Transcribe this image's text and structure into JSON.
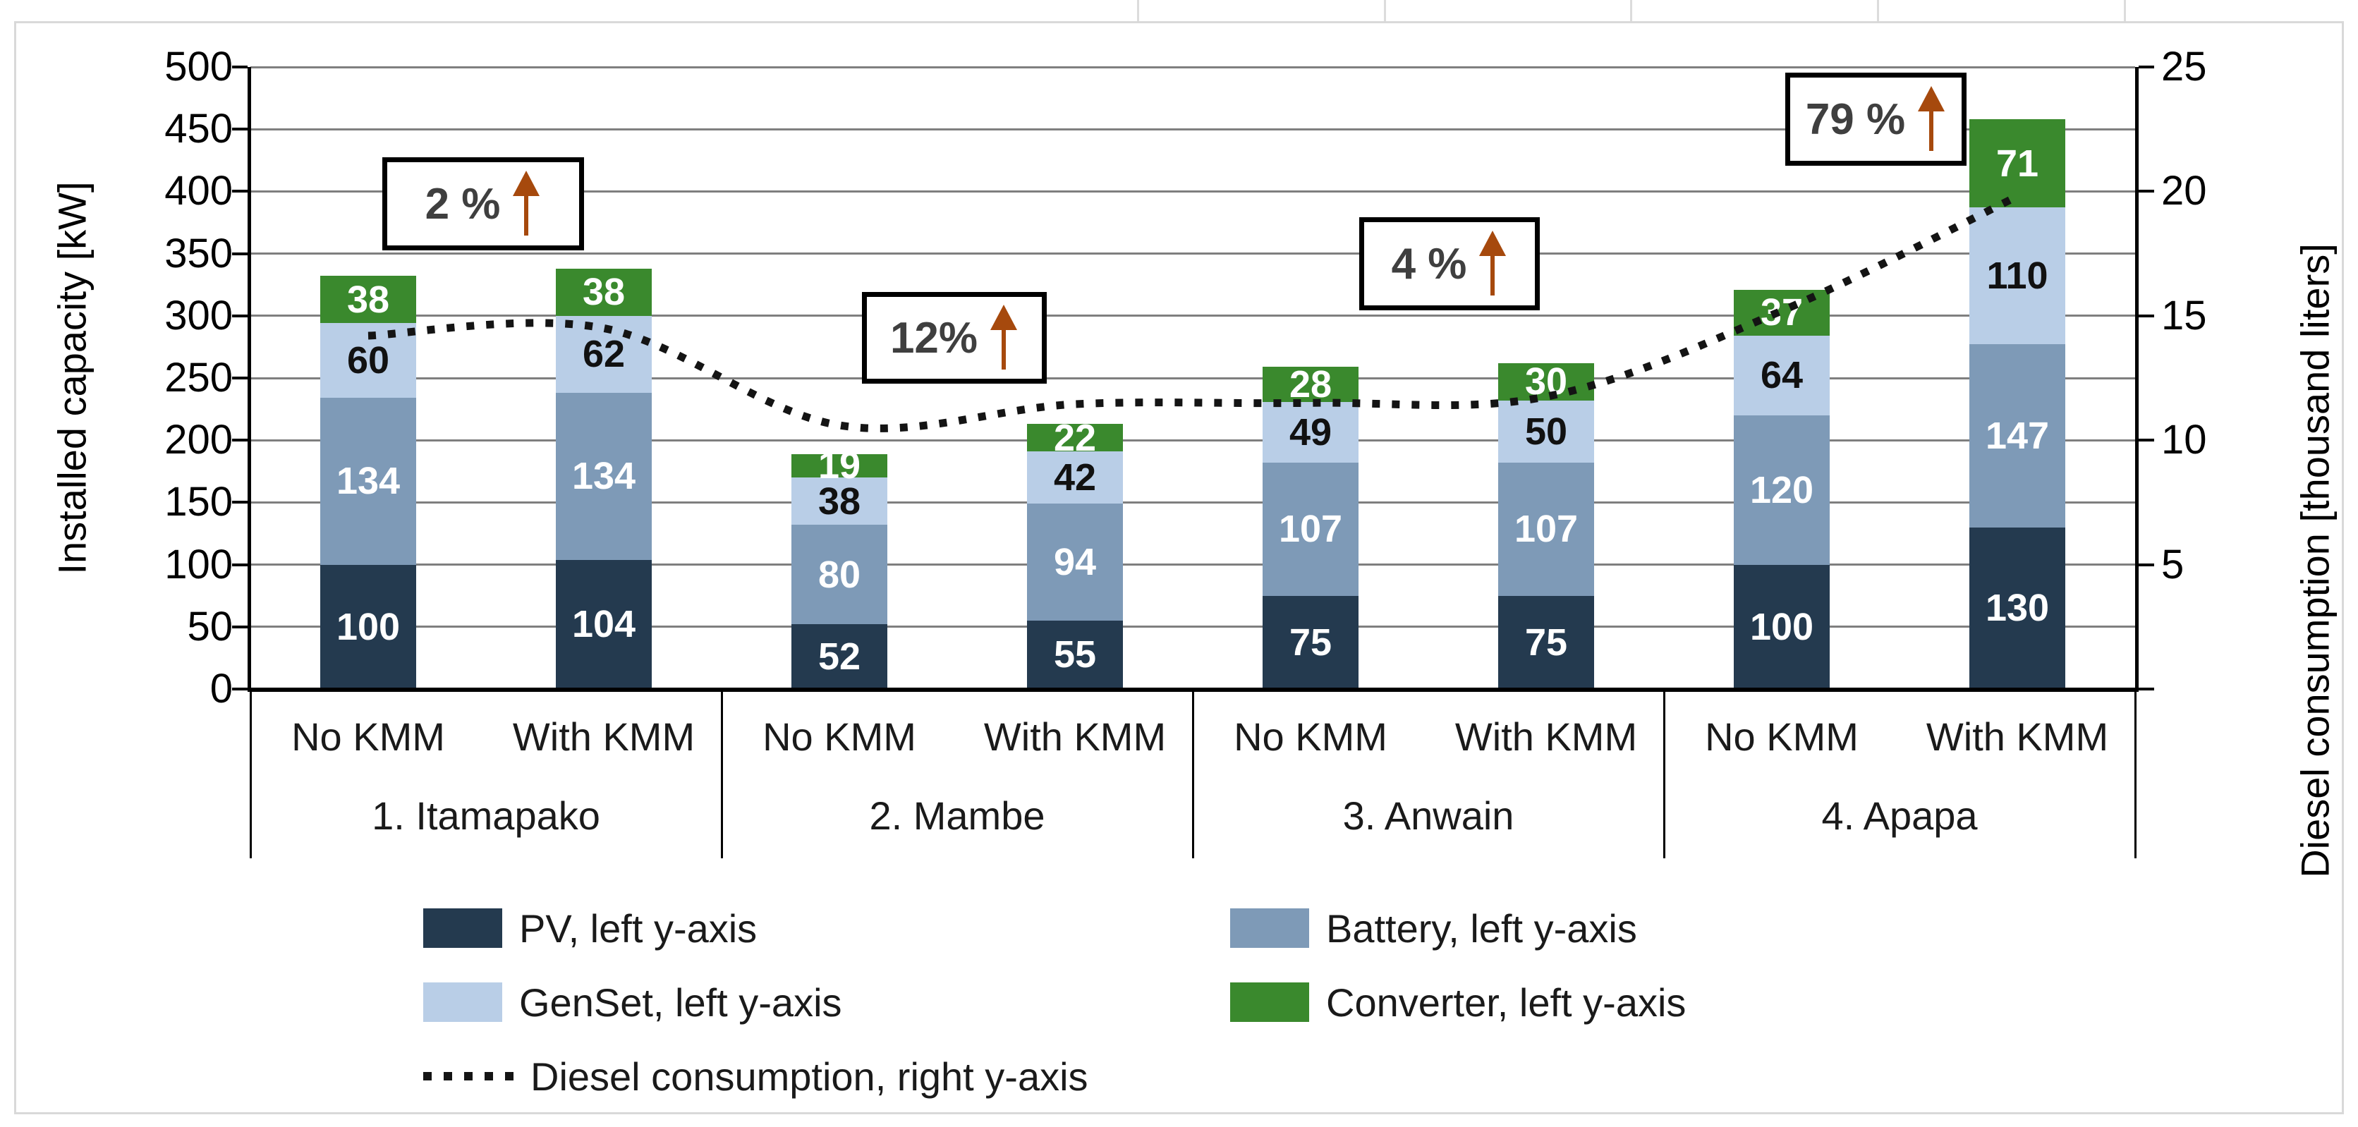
{
  "figure": {
    "background": "#FFFFFF",
    "frame_color": "#D9D9D9"
  },
  "chart_data": {
    "type": "bar",
    "subtype": "stacked-bars-with-line-dual-axis",
    "groups": [
      "1. Itamapako",
      "2. Mambe",
      "3. Anwain",
      "4. Apapa"
    ],
    "bar_labels": [
      "No KMM",
      "With KMM"
    ],
    "left_axis": {
      "title": "Installed capacity [kW]",
      "min": 0,
      "max": 500,
      "step": 50
    },
    "right_axis": {
      "title": "Diesel consumption [thousand liters]",
      "min": 0,
      "max": 25,
      "step": 5,
      "first_labeled": 5
    },
    "grid": true,
    "legend_position": "bottom",
    "series": [
      {
        "name": "PV, left y-axis",
        "color": "#243A4F",
        "label_color": "#FFFFFF",
        "values": [
          100,
          104,
          52,
          55,
          75,
          75,
          100,
          130
        ]
      },
      {
        "name": "Battery, left y-axis",
        "color": "#7E9AB7",
        "label_color": "#FFFFFF",
        "values": [
          134,
          134,
          80,
          94,
          107,
          107,
          120,
          147
        ]
      },
      {
        "name": "GenSet, left y-axis",
        "color": "#B9CEE7",
        "label_color": "#111111",
        "values": [
          60,
          62,
          38,
          42,
          49,
          50,
          64,
          110
        ]
      },
      {
        "name": "Converter, left y-axis",
        "color": "#3A892D",
        "label_color": "#FFFFFF",
        "values": [
          38,
          38,
          19,
          22,
          28,
          30,
          37,
          71
        ]
      }
    ],
    "line_series": {
      "name": "Diesel consumption, right y-axis",
      "axis": "right",
      "color": "#141414",
      "values": [
        14.2,
        14.5,
        10.6,
        11.45,
        11.5,
        11.75,
        15.2,
        19.8
      ]
    },
    "annotations": [
      {
        "text": "2 %",
        "arrow": "up"
      },
      {
        "text": "12%",
        "arrow": "up"
      },
      {
        "text": "4 %",
        "arrow": "up"
      },
      {
        "text": "79 %",
        "arrow": "up"
      }
    ],
    "annotation_arrow_color": "#A6490D",
    "gridline_color": "#7F7F7F"
  },
  "legend": {
    "rows": [
      [
        {
          "kind": "swatch",
          "series": 0
        },
        {
          "kind": "swatch",
          "series": 1
        }
      ],
      [
        {
          "kind": "swatch",
          "series": 2
        },
        {
          "kind": "swatch",
          "series": 3
        }
      ],
      [
        {
          "kind": "dots",
          "series": -1
        }
      ]
    ]
  }
}
